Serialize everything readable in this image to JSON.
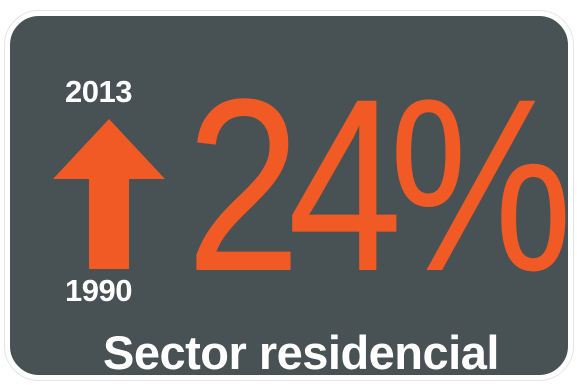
{
  "colors": {
    "background": "#485153",
    "accent": "#f15a24",
    "text": "#ffffff"
  },
  "stat": {
    "year_end": "2013",
    "year_start": "1990",
    "value": "24%",
    "direction_icon": "up-arrow-icon",
    "caption": "Sector residencial"
  }
}
